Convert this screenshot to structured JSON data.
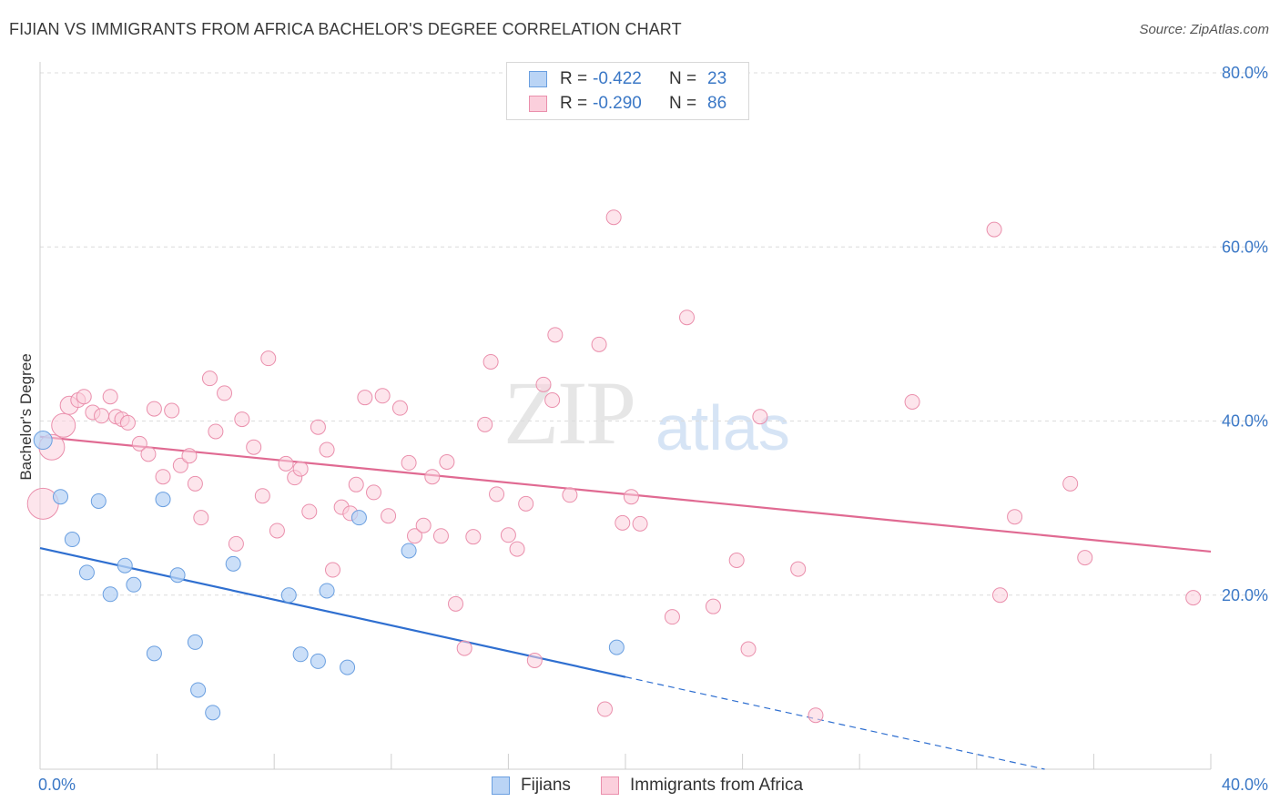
{
  "title": "FIJIAN VS IMMIGRANTS FROM AFRICA BACHELOR'S DEGREE CORRELATION CHART",
  "source": "Source: ZipAtlas.com",
  "watermark": {
    "zip": "ZIP",
    "atlas": "atlas"
  },
  "legend": {
    "fijians": {
      "r_label": "R =",
      "r_value": "-0.422",
      "n_label": "N =",
      "n_value": "23"
    },
    "africa": {
      "r_label": "R =",
      "r_value": "-0.290",
      "n_label": "N =",
      "n_value": "86"
    }
  },
  "bottom_legend": {
    "fijians": "Fijians",
    "africa": "Immigrants from Africa"
  },
  "colors": {
    "fijians_fill": "#bad4f5",
    "fijians_stroke": "#6a9fe0",
    "fijians_line": "#2f6fd0",
    "africa_fill": "#fbcfdc",
    "africa_stroke": "#ea8fac",
    "africa_line": "#e06a92"
  },
  "chart_data": {
    "type": "scatter",
    "title": "FIJIAN VS IMMIGRANTS FROM AFRICA BACHELOR'S DEGREE CORRELATION CHART",
    "xlabel": "",
    "ylabel": "Bachelor's Degree",
    "xlim": [
      0,
      40
    ],
    "ylim": [
      0,
      80
    ],
    "x_tick_labels": [
      "0.0%",
      "40.0%"
    ],
    "y_ticks": [
      20,
      40,
      60,
      80
    ],
    "y_tick_labels": [
      "20.0%",
      "40.0%",
      "60.0%",
      "80.0%"
    ],
    "grid": true,
    "series": [
      {
        "name": "Fijians",
        "points": [
          [
            0.1,
            37.8
          ],
          [
            0.7,
            31.3
          ],
          [
            1.1,
            26.4
          ],
          [
            1.6,
            22.6
          ],
          [
            2.0,
            30.8
          ],
          [
            2.4,
            20.1
          ],
          [
            2.9,
            23.4
          ],
          [
            3.2,
            21.2
          ],
          [
            3.9,
            13.3
          ],
          [
            4.2,
            31.0
          ],
          [
            4.7,
            22.3
          ],
          [
            5.3,
            14.6
          ],
          [
            5.4,
            9.1
          ],
          [
            5.9,
            6.5
          ],
          [
            6.6,
            23.6
          ],
          [
            8.5,
            20.0
          ],
          [
            8.9,
            13.2
          ],
          [
            9.5,
            12.4
          ],
          [
            9.8,
            20.5
          ],
          [
            10.5,
            11.7
          ],
          [
            10.9,
            28.9
          ],
          [
            12.6,
            25.1
          ],
          [
            19.7,
            14.0
          ]
        ],
        "trend": {
          "x": [
            0,
            20
          ],
          "y": [
            25.4,
            10.6
          ]
        },
        "trend_extended": {
          "x": [
            20,
            40
          ],
          "y": [
            10.6,
            -4.2
          ]
        }
      },
      {
        "name": "Immigrants from Africa",
        "points": [
          [
            0.1,
            30.5
          ],
          [
            0.4,
            37.0
          ],
          [
            0.8,
            39.5
          ],
          [
            1.0,
            41.8
          ],
          [
            1.3,
            42.4
          ],
          [
            1.5,
            42.8
          ],
          [
            1.8,
            41.0
          ],
          [
            2.1,
            40.6
          ],
          [
            2.4,
            42.8
          ],
          [
            2.6,
            40.5
          ],
          [
            2.8,
            40.2
          ],
          [
            3.0,
            39.8
          ],
          [
            3.4,
            37.4
          ],
          [
            3.7,
            36.2
          ],
          [
            3.9,
            41.4
          ],
          [
            4.2,
            33.6
          ],
          [
            4.5,
            41.2
          ],
          [
            4.8,
            34.9
          ],
          [
            5.1,
            36.0
          ],
          [
            5.3,
            32.8
          ],
          [
            5.5,
            28.9
          ],
          [
            5.8,
            44.9
          ],
          [
            6.0,
            38.8
          ],
          [
            6.3,
            43.2
          ],
          [
            6.7,
            25.9
          ],
          [
            6.9,
            40.2
          ],
          [
            7.3,
            37.0
          ],
          [
            7.6,
            31.4
          ],
          [
            7.8,
            47.2
          ],
          [
            8.1,
            27.4
          ],
          [
            8.4,
            35.1
          ],
          [
            8.7,
            33.5
          ],
          [
            8.9,
            34.5
          ],
          [
            9.2,
            29.6
          ],
          [
            9.5,
            39.3
          ],
          [
            9.8,
            36.7
          ],
          [
            10.0,
            22.9
          ],
          [
            10.3,
            30.1
          ],
          [
            10.6,
            29.4
          ],
          [
            10.8,
            32.7
          ],
          [
            11.1,
            42.7
          ],
          [
            11.4,
            31.8
          ],
          [
            11.7,
            42.9
          ],
          [
            11.9,
            29.1
          ],
          [
            12.3,
            41.5
          ],
          [
            12.6,
            35.2
          ],
          [
            12.8,
            26.8
          ],
          [
            13.1,
            28.0
          ],
          [
            13.4,
            33.6
          ],
          [
            13.7,
            26.8
          ],
          [
            13.9,
            35.3
          ],
          [
            14.2,
            19.0
          ],
          [
            14.5,
            13.9
          ],
          [
            14.8,
            26.7
          ],
          [
            15.2,
            39.6
          ],
          [
            15.4,
            46.8
          ],
          [
            15.6,
            31.6
          ],
          [
            16.0,
            26.9
          ],
          [
            16.3,
            25.3
          ],
          [
            16.6,
            30.5
          ],
          [
            16.9,
            12.5
          ],
          [
            17.2,
            44.2
          ],
          [
            17.5,
            42.4
          ],
          [
            17.6,
            49.9
          ],
          [
            18.1,
            31.5
          ],
          [
            19.1,
            48.8
          ],
          [
            19.3,
            6.9
          ],
          [
            19.6,
            63.4
          ],
          [
            19.9,
            28.3
          ],
          [
            20.2,
            31.3
          ],
          [
            20.5,
            28.2
          ],
          [
            21.6,
            17.5
          ],
          [
            22.1,
            51.9
          ],
          [
            23.0,
            18.7
          ],
          [
            23.8,
            24.0
          ],
          [
            24.2,
            13.8
          ],
          [
            24.6,
            40.5
          ],
          [
            25.9,
            23.0
          ],
          [
            26.5,
            6.2
          ],
          [
            29.8,
            42.2
          ],
          [
            32.6,
            62.0
          ],
          [
            32.8,
            20.0
          ],
          [
            33.3,
            29.0
          ],
          [
            35.2,
            32.8
          ],
          [
            35.7,
            24.3
          ],
          [
            39.4,
            19.7
          ]
        ],
        "trend": {
          "x": [
            0,
            40
          ],
          "y": [
            38.2,
            25.0
          ]
        }
      }
    ]
  }
}
